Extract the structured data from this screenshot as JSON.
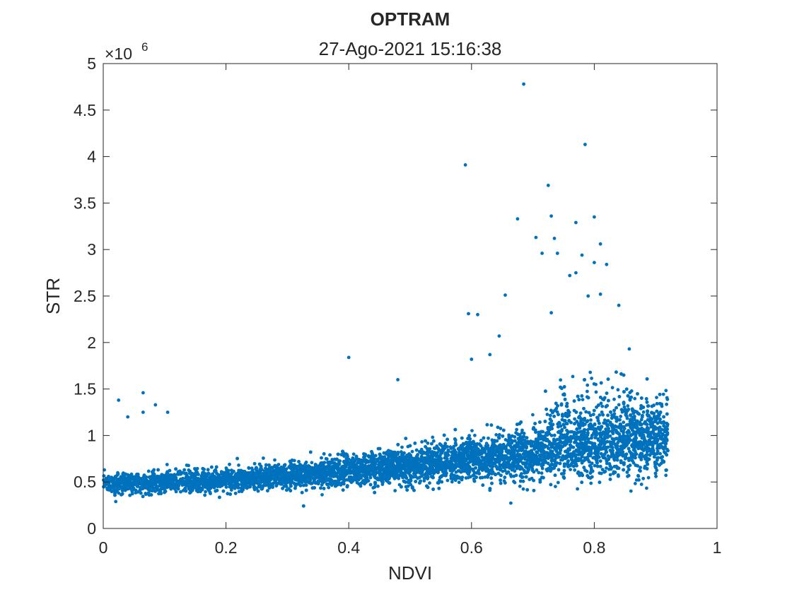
{
  "chart_data": {
    "type": "scatter",
    "title": "OPTRAM",
    "subtitle": "27-Ago-2021 15:16:38",
    "xlabel": "NDVI",
    "ylabel": "STR",
    "xlim": [
      0,
      1
    ],
    "ylim": [
      0,
      5000000
    ],
    "y_exponent_label": {
      "base": "×10",
      "power": "6"
    },
    "x_ticks": [
      "0",
      "0.2",
      "0.4",
      "0.6",
      "0.8",
      "1"
    ],
    "x_tick_values": [
      0,
      0.2,
      0.4,
      0.6,
      0.8,
      1
    ],
    "y_ticks": [
      "0",
      "0.5",
      "1",
      "1.5",
      "2",
      "2.5",
      "3",
      "3.5",
      "4",
      "4.5",
      "5"
    ],
    "y_tick_values": [
      0,
      500000,
      1000000,
      1500000,
      2000000,
      2500000,
      3000000,
      3500000,
      4000000,
      4500000,
      5000000
    ],
    "grid": false,
    "legend": "none",
    "series": [
      {
        "color": "#0072BD",
        "marker": "dot",
        "description_of_cloud": {
          "ndvi_range": [
            0.0,
            0.92
          ],
          "str_trend_low_ndvi": 500000,
          "str_trend_high_ndvi": 1000000
        },
        "outliers": [
          [
            0.685,
            4780000
          ],
          [
            0.785,
            4130000
          ],
          [
            0.59,
            3910000
          ],
          [
            0.725,
            3690000
          ],
          [
            0.73,
            3360000
          ],
          [
            0.8,
            3350000
          ],
          [
            0.675,
            3330000
          ],
          [
            0.77,
            3290000
          ],
          [
            0.705,
            3130000
          ],
          [
            0.735,
            3120000
          ],
          [
            0.81,
            3060000
          ],
          [
            0.715,
            2960000
          ],
          [
            0.74,
            2960000
          ],
          [
            0.78,
            2940000
          ],
          [
            0.8,
            2860000
          ],
          [
            0.82,
            2840000
          ],
          [
            0.77,
            2750000
          ],
          [
            0.76,
            2720000
          ],
          [
            0.655,
            2510000
          ],
          [
            0.79,
            2500000
          ],
          [
            0.81,
            2520000
          ],
          [
            0.595,
            2310000
          ],
          [
            0.61,
            2300000
          ],
          [
            0.73,
            2320000
          ],
          [
            0.84,
            2400000
          ],
          [
            0.4,
            1840000
          ],
          [
            0.48,
            1600000
          ],
          [
            0.085,
            1330000
          ],
          [
            0.065,
            1460000
          ],
          [
            0.025,
            1380000
          ],
          [
            0.105,
            1250000
          ],
          [
            0.04,
            1200000
          ],
          [
            0.065,
            1250000
          ],
          [
            0.6,
            1820000
          ],
          [
            0.63,
            1870000
          ],
          [
            0.645,
            2070000
          ]
        ]
      }
    ]
  }
}
